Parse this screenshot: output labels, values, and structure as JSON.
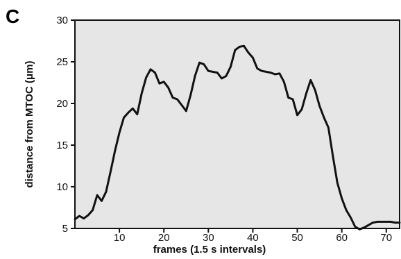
{
  "panel_label": "C",
  "colors": {
    "plot_background": "#e6e6e6",
    "line": "#111111",
    "axis": "#111111"
  },
  "chart_data": {
    "type": "line",
    "xlabel": "frames (1.5 s intervals)",
    "ylabel": "distance from MTOC (μm)",
    "xlim": [
      0,
      73
    ],
    "ylim": [
      5,
      30
    ],
    "xticks": [
      10,
      20,
      30,
      40,
      50,
      60,
      70
    ],
    "yticks": [
      5,
      10,
      15,
      20,
      25,
      30
    ],
    "grid": false,
    "legend": "none",
    "series": [
      {
        "x": [
          0,
          1,
          2,
          3,
          4,
          5,
          6,
          7,
          8,
          9,
          10,
          11,
          12,
          13,
          14,
          15,
          16,
          17,
          18,
          19,
          20,
          21,
          22,
          23,
          24,
          25,
          26,
          27,
          28,
          29,
          30,
          31,
          32,
          33,
          34,
          35,
          36,
          37,
          38,
          39,
          40,
          41,
          42,
          43,
          44,
          45,
          46,
          47,
          48,
          49,
          50,
          51,
          52,
          53,
          54,
          55,
          56,
          57,
          58,
          59,
          60,
          61,
          62,
          63,
          64,
          65,
          66,
          67,
          68,
          69,
          70,
          71,
          72,
          73
        ],
        "y": [
          6.1,
          6.5,
          6.2,
          6.6,
          7.2,
          9.0,
          8.3,
          9.4,
          11.8,
          14.3,
          16.5,
          18.3,
          18.9,
          19.4,
          18.7,
          21.2,
          23.1,
          24.1,
          23.7,
          22.4,
          22.6,
          21.9,
          20.7,
          20.5,
          19.8,
          19.1,
          21.0,
          23.3,
          24.9,
          24.7,
          23.9,
          23.8,
          23.7,
          23.0,
          23.3,
          24.4,
          26.4,
          26.8,
          26.9,
          26.1,
          25.5,
          24.2,
          23.9,
          23.8,
          23.7,
          23.5,
          23.6,
          22.6,
          20.7,
          20.5,
          18.6,
          19.3,
          21.2,
          22.8,
          21.6,
          19.7,
          18.3,
          17.1,
          13.7,
          10.5,
          8.6,
          7.2,
          6.3,
          5.2,
          4.9,
          5.1,
          5.4,
          5.7,
          5.8,
          5.8,
          5.8,
          5.8,
          5.7,
          5.7
        ]
      }
    ]
  }
}
